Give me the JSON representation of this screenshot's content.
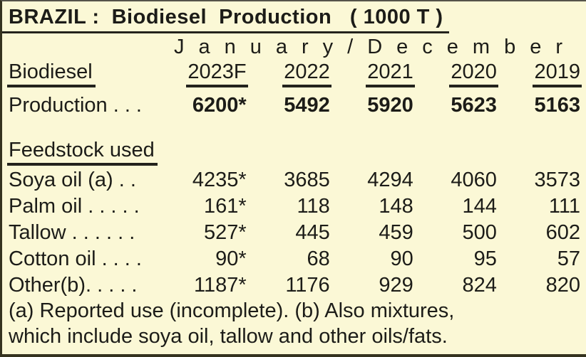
{
  "title": "BRAZIL :  Biodiesel  Production   ( 1000 T )",
  "period": "January/December",
  "table": {
    "label_header": "Biodiesel",
    "year_headers": [
      "2023F",
      "2022",
      "2021",
      "2020",
      "2019"
    ],
    "production_row": {
      "label": "Production . . .",
      "values": [
        "6200*",
        "5492",
        "5920",
        "5623",
        "5163"
      ]
    },
    "feedstock_header": "Feedstock used",
    "feedstock_rows": [
      {
        "label": "Soya oil (a) . .",
        "values": [
          "4235*",
          "3685",
          "4294",
          "4060",
          "3573"
        ]
      },
      {
        "label": "Palm oil . . . . .",
        "values": [
          "161*",
          "118",
          "148",
          "144",
          "111"
        ]
      },
      {
        "label": "Tallow . . . . . .",
        "values": [
          "527*",
          "445",
          "459",
          "500",
          "602"
        ]
      },
      {
        "label": "Cotton oil . . . .",
        "values": [
          "90*",
          "68",
          "90",
          "95",
          "57"
        ]
      },
      {
        "label": "Other(b). . . . .",
        "values": [
          "1187*",
          "1176",
          "929",
          "824",
          "820"
        ]
      }
    ],
    "footnotes": [
      "(a) Reported use (incomplete). (b) Also mixtures,",
      "which include soya oil, tallow and other oils/fats."
    ]
  },
  "colors": {
    "background": "#fbf8d6",
    "text": "#1c1c18",
    "rule": "#23231d",
    "frame": "#35331f"
  }
}
